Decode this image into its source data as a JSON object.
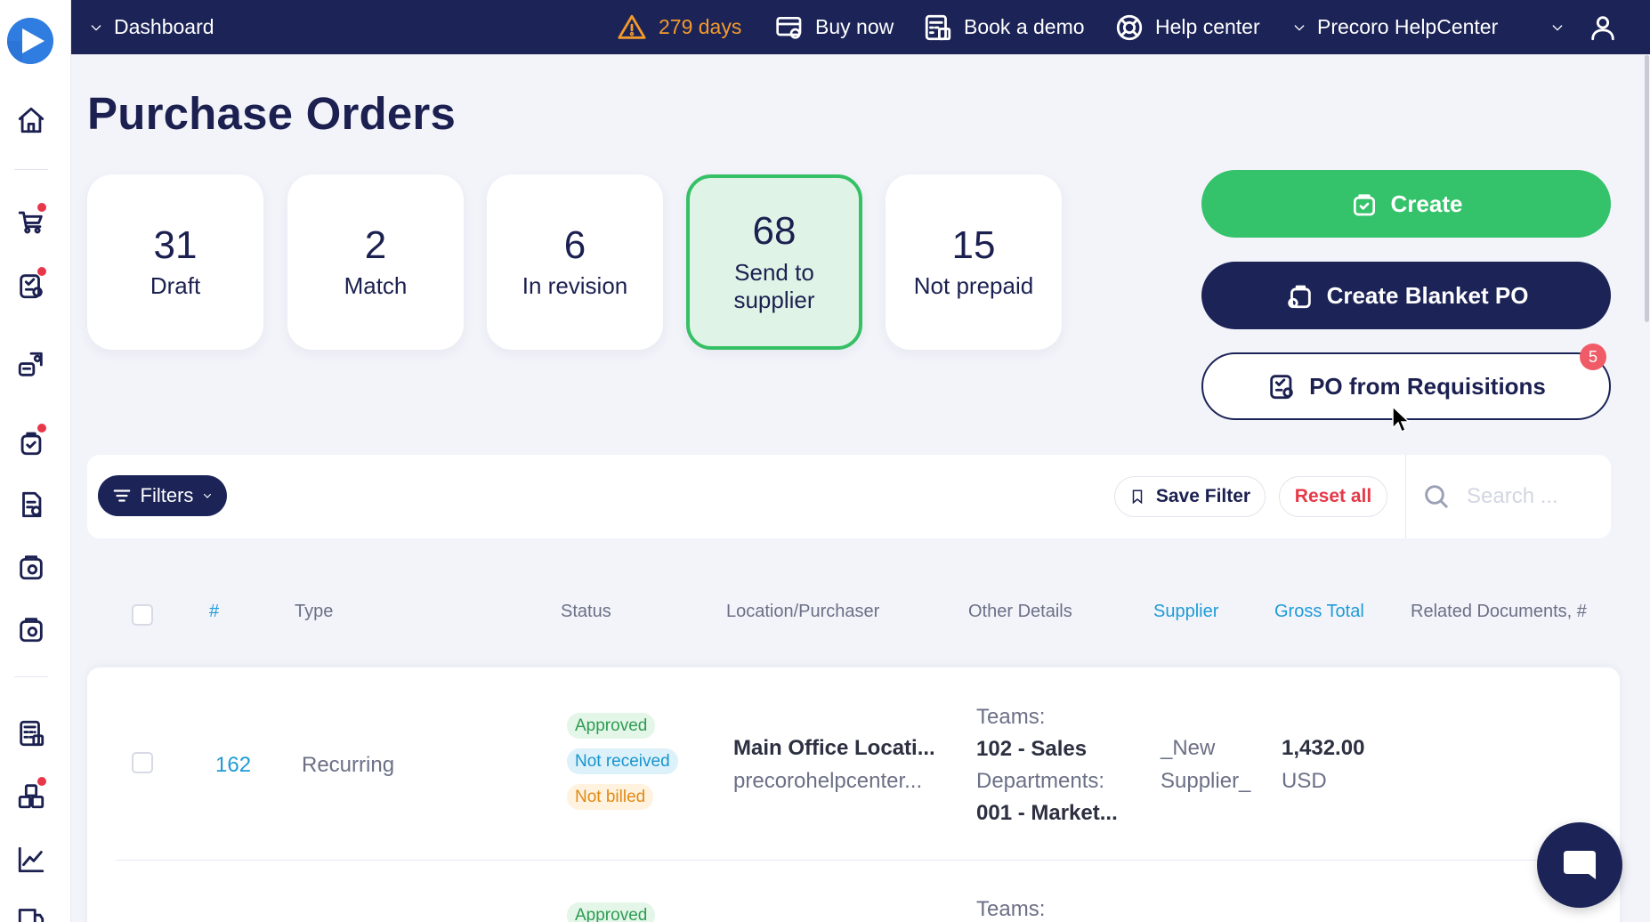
{
  "topbar": {
    "dashboard_label": "Dashboard",
    "trial_days": "279 days",
    "buy_now": "Buy now",
    "book_demo": "Book a demo",
    "help_center": "Help center",
    "company": "Precoro HelpCenter"
  },
  "sidebar": {
    "icons": [
      "home-icon",
      "cart-icon",
      "requisition-icon",
      "receipt-icon",
      "orders-icon",
      "invoice-icon",
      "wallet-icon",
      "wallet-alt-icon",
      "budget-icon",
      "inventory-icon",
      "analytics-icon",
      "delivery-icon"
    ]
  },
  "page": {
    "title": "Purchase Orders"
  },
  "stats": [
    {
      "count": "31",
      "label": "Draft"
    },
    {
      "count": "2",
      "label": "Match"
    },
    {
      "count": "6",
      "label": "In revision"
    },
    {
      "count": "68",
      "label": "Send to supplier"
    },
    {
      "count": "15",
      "label": "Not prepaid"
    }
  ],
  "actions": {
    "create": "Create",
    "create_blanket": "Create Blanket PO",
    "po_from_requisitions": "PO from Requisitions",
    "requisitions_badge": "5"
  },
  "filters": {
    "filters_label": "Filters",
    "save_filter": "Save Filter",
    "reset_all": "Reset all",
    "search_placeholder": "Search ..."
  },
  "table": {
    "columns": [
      "#",
      "Type",
      "Status",
      "Location/Purchaser",
      "Other Details",
      "Supplier",
      "Gross Total",
      "Related Documents, #"
    ],
    "rows": [
      {
        "number": "162",
        "type": "Recurring",
        "statuses": [
          "Approved",
          "Not received",
          "Not billed"
        ],
        "location": "Main Office Locati...",
        "purchaser": "precorohelpcenter...",
        "teams_label": "Teams:",
        "teams_value": "102 - Sales",
        "departments_label": "Departments:",
        "departments_value": "001 - Market...",
        "supplier_line1": "_New",
        "supplier_line2": "Supplier_",
        "gross_total": "1,432.00",
        "currency": "USD"
      },
      {
        "statuses": [
          "Approved"
        ],
        "teams_label": "Teams:"
      }
    ]
  },
  "colors": {
    "navy": "#1b2357",
    "green": "#34c26b",
    "link_blue": "#1e9bd7",
    "danger": "#e53948",
    "warning": "#f39a2b"
  }
}
